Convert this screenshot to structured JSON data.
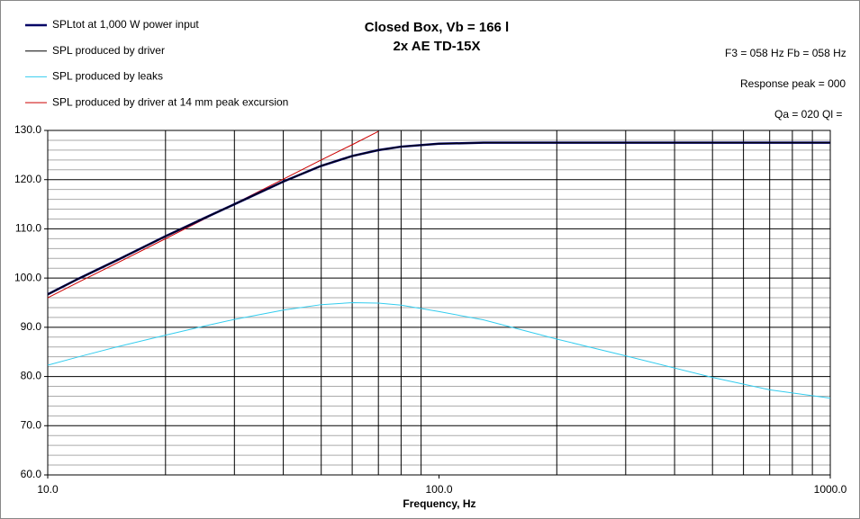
{
  "chart_data": {
    "type": "line",
    "title": "Closed Box, Vb = 166 l",
    "subtitle": "2x AE TD-15X",
    "annotations": [
      "F3 = 058 Hz  Fb = 058 Hz",
      "Response peak = 000",
      "Qa = 020  Ql ="
    ],
    "x_label": "Frequency, Hz",
    "x": [
      10,
      12,
      15,
      20,
      25,
      30,
      40,
      50,
      60,
      70,
      80,
      100,
      130,
      200,
      300,
      500,
      700,
      1000
    ],
    "series": [
      {
        "name": "SPLtot at 1,000 W power input",
        "color": "#000066",
        "width": 2.5,
        "values": [
          96.7,
          99.9,
          103.6,
          108.5,
          112.1,
          115.0,
          119.6,
          122.8,
          124.8,
          126.0,
          126.7,
          127.3,
          127.5,
          127.5,
          127.5,
          127.5,
          127.5,
          127.5
        ]
      },
      {
        "name": "SPL produced by driver",
        "color": "#000000",
        "width": 1,
        "values": [
          96.7,
          99.9,
          103.6,
          108.5,
          112.1,
          115.0,
          119.6,
          122.8,
          124.8,
          126.0,
          126.7,
          127.3,
          127.5,
          127.5,
          127.5,
          127.5,
          127.5,
          127.5
        ]
      },
      {
        "name": "SPL produced by leaks",
        "color": "#33ccee",
        "width": 1,
        "values": [
          82.3,
          84.0,
          86.0,
          88.4,
          90.2,
          91.6,
          93.5,
          94.6,
          95.0,
          94.9,
          94.5,
          93.2,
          91.5,
          87.6,
          84.2,
          79.8,
          77.3,
          75.6
        ]
      },
      {
        "name": "SPL produced by driver at 14 mm peak excursion",
        "color": "#cc0000",
        "width": 1,
        "values": [
          96.0,
          99.2,
          103.0,
          108.0,
          111.9,
          115.1,
          120.1,
          124.0,
          127.1,
          129.8,
          null,
          null,
          null,
          null,
          null,
          null,
          null,
          null
        ]
      }
    ],
    "xlim": [
      10,
      1000
    ],
    "x_log": true,
    "xticks": [
      {
        "value": 10,
        "label": "10.0"
      },
      {
        "value": 100,
        "label": "100.0"
      },
      {
        "value": 1000,
        "label": "1000.0"
      }
    ],
    "ylim": [
      60,
      130
    ],
    "yticks": [
      {
        "value": 60,
        "label": "60.0"
      },
      {
        "value": 70,
        "label": "70.0"
      },
      {
        "value": 80,
        "label": "80.0"
      },
      {
        "value": 90,
        "label": "90.0"
      },
      {
        "value": 100,
        "label": "100.0"
      },
      {
        "value": 110,
        "label": "110.0"
      },
      {
        "value": 120,
        "label": "120.0"
      },
      {
        "value": 130,
        "label": "130.0"
      }
    ],
    "grid": true
  }
}
